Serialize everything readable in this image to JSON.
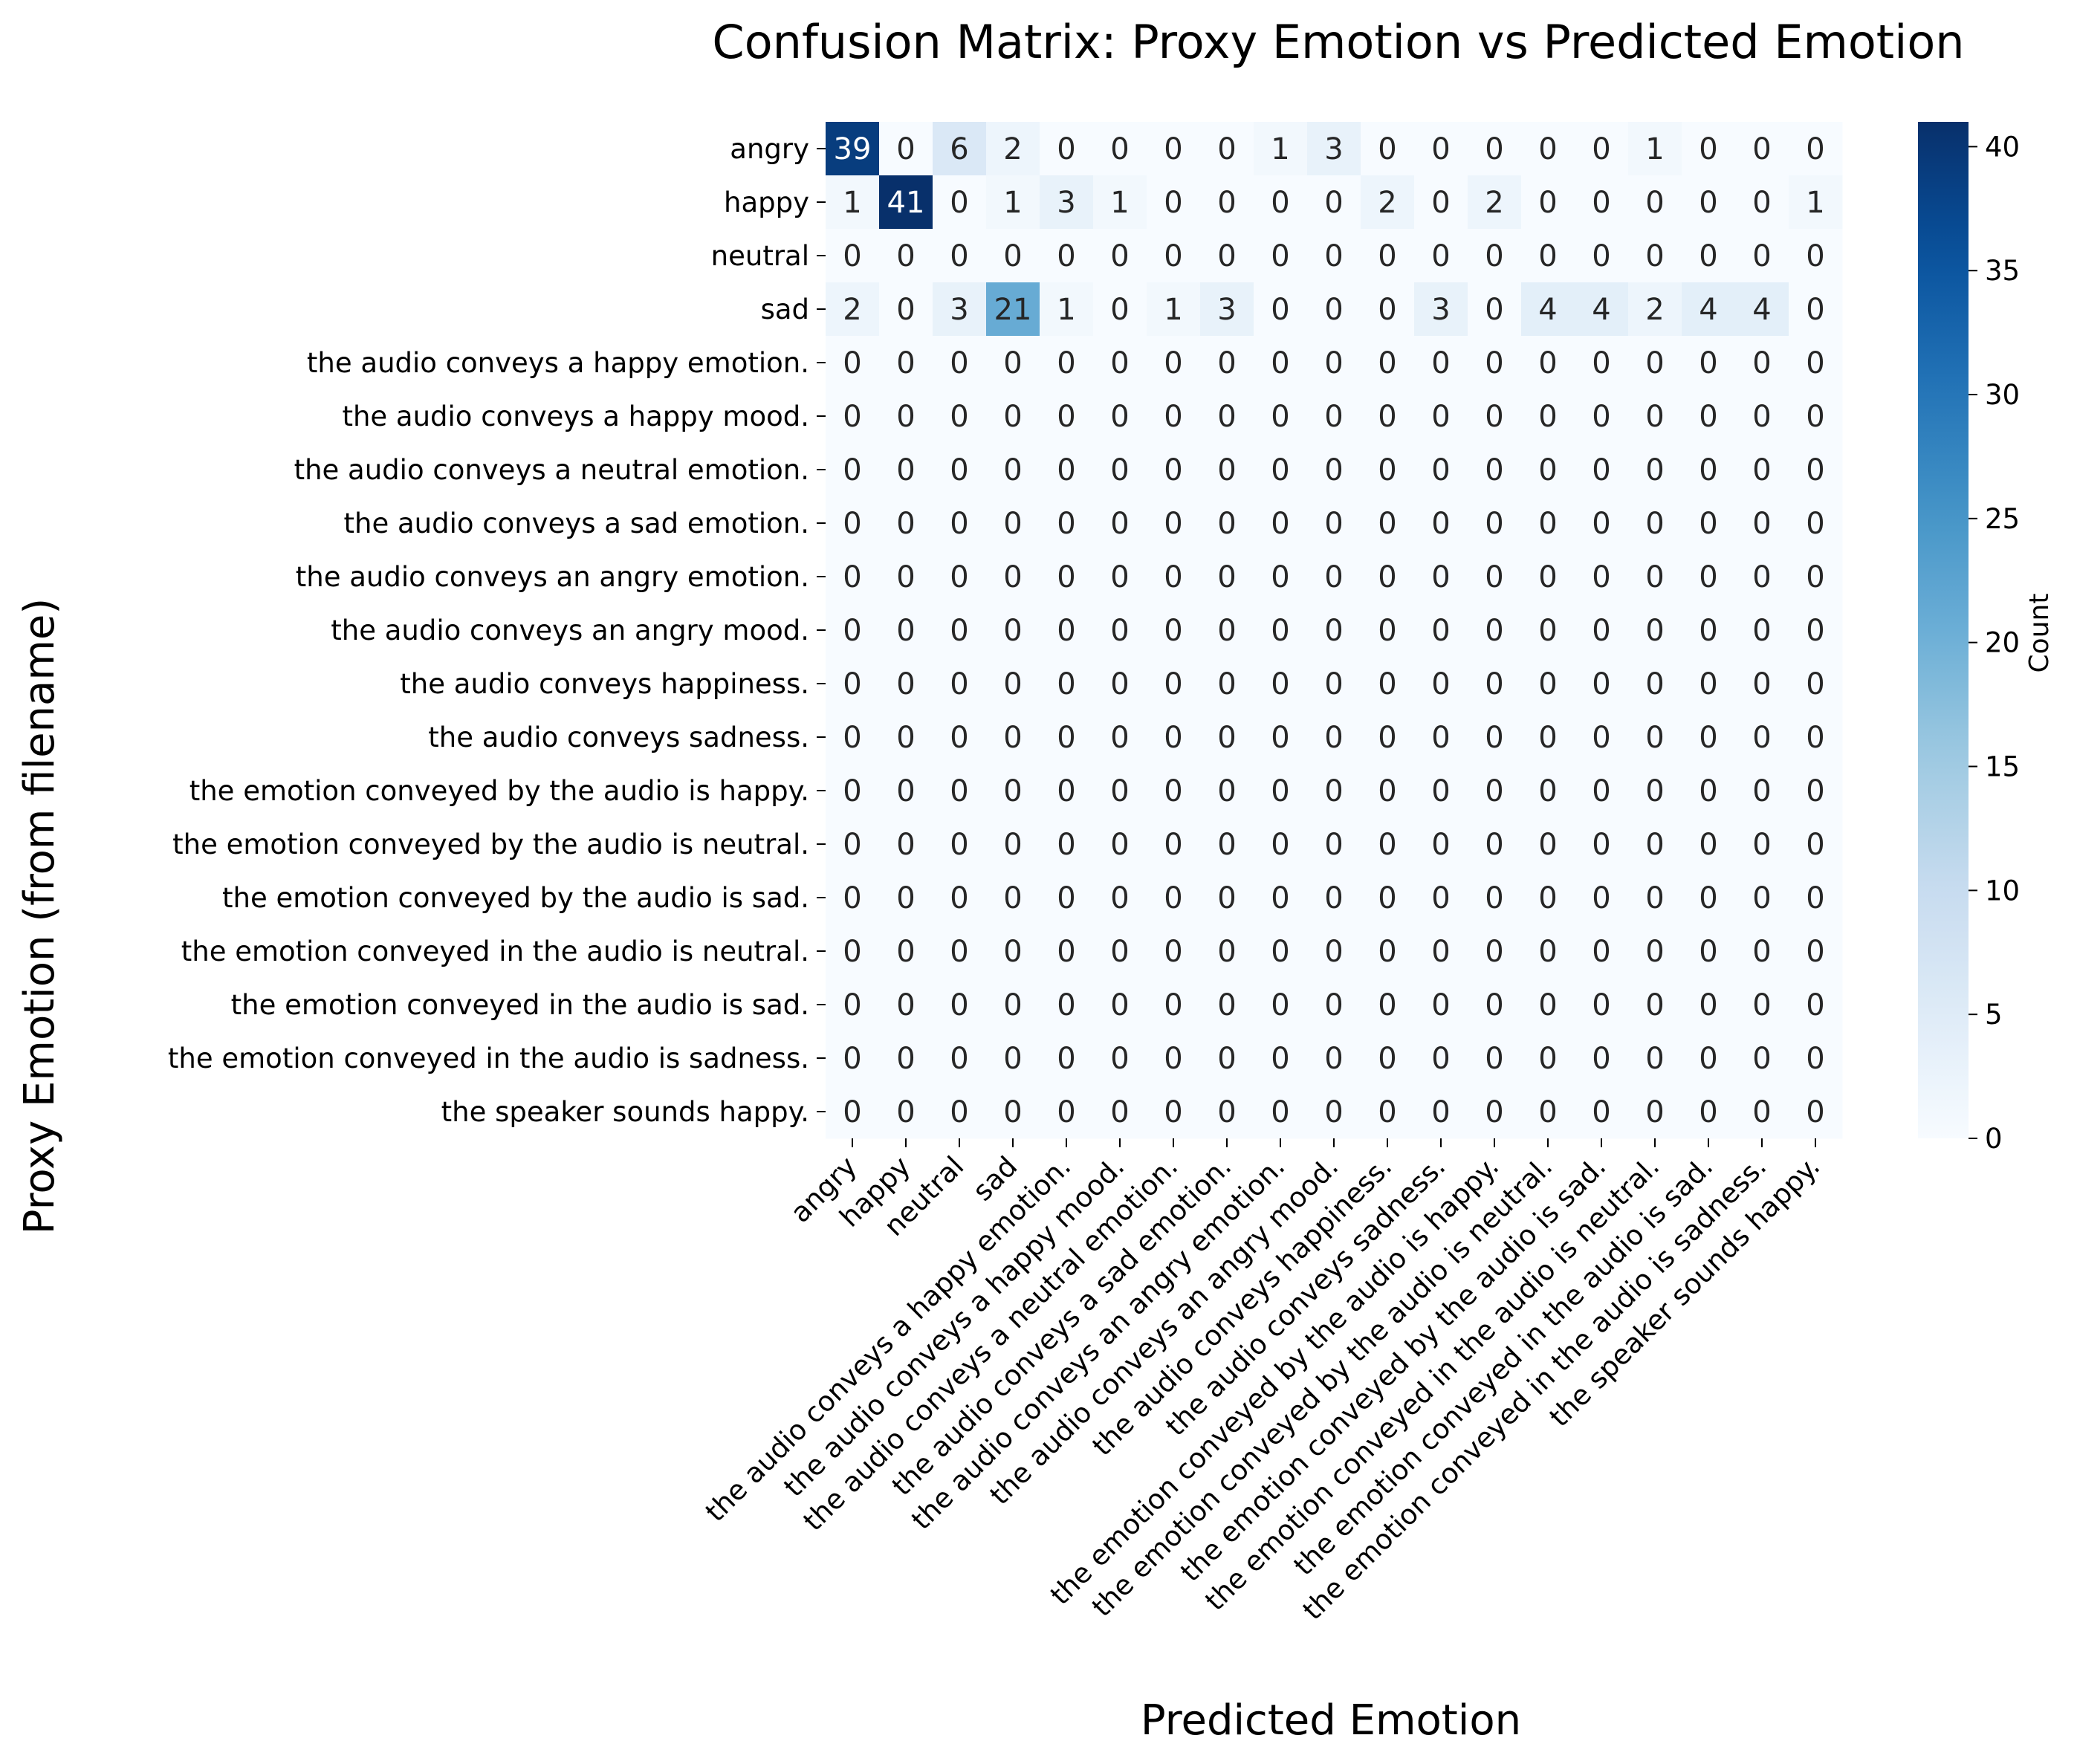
{
  "chart_data": {
    "type": "heatmap",
    "title": "Confusion Matrix: Proxy Emotion vs Predicted Emotion",
    "xlabel": "Predicted Emotion",
    "ylabel": "Proxy Emotion (from filename)",
    "colorbar_label": "Count",
    "colormap": "Blues",
    "color_low": "#f7fbff",
    "color_high": "#08306b",
    "vmin": 0,
    "vmax": 41,
    "colorbar_ticks": [
      0,
      5,
      10,
      15,
      20,
      25,
      30,
      35,
      40
    ],
    "labels": [
      "angry",
      "happy",
      "neutral",
      "sad",
      "the audio conveys a happy emotion.",
      "the audio conveys a happy mood.",
      "the audio conveys a neutral emotion.",
      "the audio conveys a sad emotion.",
      "the audio conveys an angry emotion.",
      "the audio conveys an angry mood.",
      "the audio conveys happiness.",
      "the audio conveys sadness.",
      "the emotion conveyed by the audio is happy.",
      "the emotion conveyed by the audio is neutral.",
      "the emotion conveyed by the audio is sad.",
      "the emotion conveyed in the audio is neutral.",
      "the emotion conveyed in the audio is sad.",
      "the emotion conveyed in the audio is sadness.",
      "the speaker sounds happy."
    ],
    "matrix": [
      [
        39,
        0,
        6,
        2,
        0,
        0,
        0,
        0,
        1,
        3,
        0,
        0,
        0,
        0,
        0,
        1,
        0,
        0,
        0
      ],
      [
        1,
        41,
        0,
        1,
        3,
        1,
        0,
        0,
        0,
        0,
        2,
        0,
        2,
        0,
        0,
        0,
        0,
        0,
        1
      ],
      [
        0,
        0,
        0,
        0,
        0,
        0,
        0,
        0,
        0,
        0,
        0,
        0,
        0,
        0,
        0,
        0,
        0,
        0,
        0
      ],
      [
        2,
        0,
        3,
        21,
        1,
        0,
        1,
        3,
        0,
        0,
        0,
        3,
        0,
        4,
        4,
        2,
        4,
        4,
        0
      ],
      [
        0,
        0,
        0,
        0,
        0,
        0,
        0,
        0,
        0,
        0,
        0,
        0,
        0,
        0,
        0,
        0,
        0,
        0,
        0
      ],
      [
        0,
        0,
        0,
        0,
        0,
        0,
        0,
        0,
        0,
        0,
        0,
        0,
        0,
        0,
        0,
        0,
        0,
        0,
        0
      ],
      [
        0,
        0,
        0,
        0,
        0,
        0,
        0,
        0,
        0,
        0,
        0,
        0,
        0,
        0,
        0,
        0,
        0,
        0,
        0
      ],
      [
        0,
        0,
        0,
        0,
        0,
        0,
        0,
        0,
        0,
        0,
        0,
        0,
        0,
        0,
        0,
        0,
        0,
        0,
        0
      ],
      [
        0,
        0,
        0,
        0,
        0,
        0,
        0,
        0,
        0,
        0,
        0,
        0,
        0,
        0,
        0,
        0,
        0,
        0,
        0
      ],
      [
        0,
        0,
        0,
        0,
        0,
        0,
        0,
        0,
        0,
        0,
        0,
        0,
        0,
        0,
        0,
        0,
        0,
        0,
        0
      ],
      [
        0,
        0,
        0,
        0,
        0,
        0,
        0,
        0,
        0,
        0,
        0,
        0,
        0,
        0,
        0,
        0,
        0,
        0,
        0
      ],
      [
        0,
        0,
        0,
        0,
        0,
        0,
        0,
        0,
        0,
        0,
        0,
        0,
        0,
        0,
        0,
        0,
        0,
        0,
        0
      ],
      [
        0,
        0,
        0,
        0,
        0,
        0,
        0,
        0,
        0,
        0,
        0,
        0,
        0,
        0,
        0,
        0,
        0,
        0,
        0
      ],
      [
        0,
        0,
        0,
        0,
        0,
        0,
        0,
        0,
        0,
        0,
        0,
        0,
        0,
        0,
        0,
        0,
        0,
        0,
        0
      ],
      [
        0,
        0,
        0,
        0,
        0,
        0,
        0,
        0,
        0,
        0,
        0,
        0,
        0,
        0,
        0,
        0,
        0,
        0,
        0
      ],
      [
        0,
        0,
        0,
        0,
        0,
        0,
        0,
        0,
        0,
        0,
        0,
        0,
        0,
        0,
        0,
        0,
        0,
        0,
        0
      ],
      [
        0,
        0,
        0,
        0,
        0,
        0,
        0,
        0,
        0,
        0,
        0,
        0,
        0,
        0,
        0,
        0,
        0,
        0,
        0
      ],
      [
        0,
        0,
        0,
        0,
        0,
        0,
        0,
        0,
        0,
        0,
        0,
        0,
        0,
        0,
        0,
        0,
        0,
        0,
        0
      ],
      [
        0,
        0,
        0,
        0,
        0,
        0,
        0,
        0,
        0,
        0,
        0,
        0,
        0,
        0,
        0,
        0,
        0,
        0,
        0
      ]
    ]
  }
}
